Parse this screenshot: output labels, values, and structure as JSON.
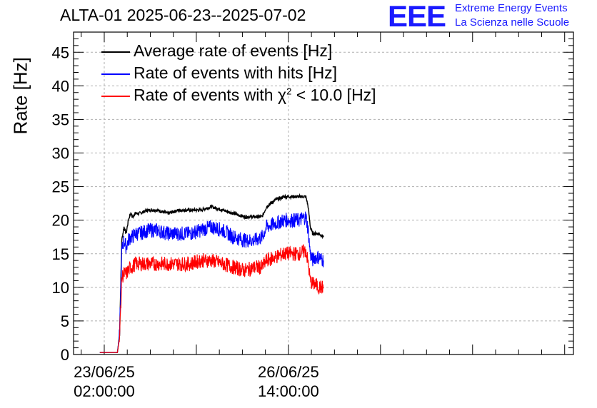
{
  "chart_data": {
    "type": "line",
    "title": "ALTA-01 2025-06-23--2025-07-02",
    "ylabel": "Rate [Hz]",
    "xlabel": "",
    "ylim": [
      0,
      48
    ],
    "yticks": [
      0,
      5,
      10,
      15,
      20,
      25,
      30,
      35,
      40,
      45
    ],
    "x_unit": "hours since 2025-06-22 00:00",
    "xlim": [
      12,
      240
    ],
    "xticks": [
      {
        "x": 26,
        "label_date": "23/06/25",
        "label_time": "02:00:00"
      },
      {
        "x": 110,
        "label_date": "26/06/25",
        "label_time": "14:00:00"
      }
    ],
    "grid": true,
    "legend_position": "top-left",
    "series": [
      {
        "name": "Average rate of events [Hz]",
        "color": "#000000",
        "x": [
          24,
          32,
          33,
          34,
          35,
          36,
          37,
          38,
          39,
          40,
          42,
          46,
          50,
          55,
          60,
          65,
          70,
          75,
          80,
          85,
          90,
          95,
          98,
          100,
          104,
          108,
          112,
          115,
          118,
          119,
          120,
          121,
          122,
          124,
          126
        ],
        "y": [
          0.3,
          0.3,
          3,
          17,
          19,
          18,
          20,
          21,
          20.5,
          21,
          21,
          21.5,
          21.5,
          21,
          21.5,
          21.5,
          21.5,
          22,
          21.5,
          21,
          20.5,
          20.5,
          20.5,
          22,
          23,
          23.5,
          23.5,
          23.5,
          23.5,
          22,
          19,
          18,
          18,
          18,
          17.5
        ]
      },
      {
        "name": "Rate of events with hits [Hz]",
        "color": "#0000ff",
        "x": [
          24,
          32,
          33,
          34,
          35,
          36,
          37,
          38,
          39,
          40,
          42,
          46,
          50,
          55,
          60,
          65,
          70,
          75,
          80,
          85,
          90,
          95,
          98,
          100,
          104,
          108,
          112,
          115,
          118,
          119,
          120,
          121,
          122,
          124,
          126
        ],
        "y": [
          0.3,
          0.3,
          3,
          15.5,
          17,
          16,
          17,
          17.5,
          17.5,
          18,
          18,
          18.5,
          18.5,
          18,
          18,
          18,
          18.5,
          19,
          18.5,
          17.5,
          17,
          17,
          17.5,
          19,
          19.5,
          20,
          20,
          20,
          20.5,
          18.5,
          15,
          14,
          14.5,
          14.5,
          14
        ]
      },
      {
        "name": "Rate of events with χ² < 10.0 [Hz]",
        "color": "#ff0000",
        "x": [
          24,
          32,
          33,
          34,
          35,
          36,
          37,
          38,
          39,
          40,
          42,
          46,
          50,
          55,
          60,
          65,
          70,
          75,
          80,
          85,
          90,
          95,
          98,
          100,
          104,
          108,
          112,
          115,
          118,
          119,
          120,
          121,
          122,
          124,
          126
        ],
        "y": [
          0.3,
          0.3,
          2.5,
          11.5,
          12,
          12,
          12.5,
          13,
          13,
          13.5,
          13.5,
          13.5,
          13.5,
          13.5,
          13.5,
          13.5,
          14,
          14,
          13.5,
          13,
          12.5,
          13,
          13,
          14,
          14.5,
          15,
          15,
          15,
          15.5,
          13.5,
          11,
          10.5,
          10.5,
          10,
          10
        ]
      }
    ]
  },
  "legend": {
    "items": [
      {
        "label": "Average rate of events [Hz]"
      },
      {
        "label": "Rate of events with hits [Hz]"
      },
      {
        "label_prefix": "Rate of events with ",
        "chi": "χ",
        "sup": "2",
        "label_suffix": " < 10.0 [Hz]"
      }
    ]
  },
  "logo": {
    "mark": "EEE",
    "line1": "Extreme Energy Events",
    "line2": "La Scienza nelle Scuole",
    "color": "#1a1aff"
  }
}
